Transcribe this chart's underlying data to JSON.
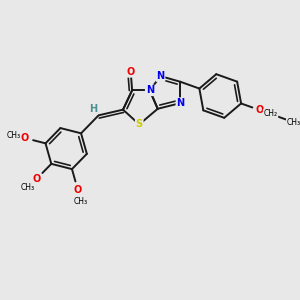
{
  "bg_color": "#e8e8e8",
  "atom_colors": {
    "C": "#000000",
    "N": "#0000ee",
    "O": "#ee0000",
    "S": "#cccc00",
    "H": "#4a9090"
  },
  "bond_color": "#1a1a1a",
  "bond_width": 1.4,
  "font_size": 7.0,
  "fig_width": 3.0,
  "fig_height": 3.0,
  "dpi": 100,
  "xlim": [
    0,
    10
  ],
  "ylim": [
    0,
    10
  ]
}
